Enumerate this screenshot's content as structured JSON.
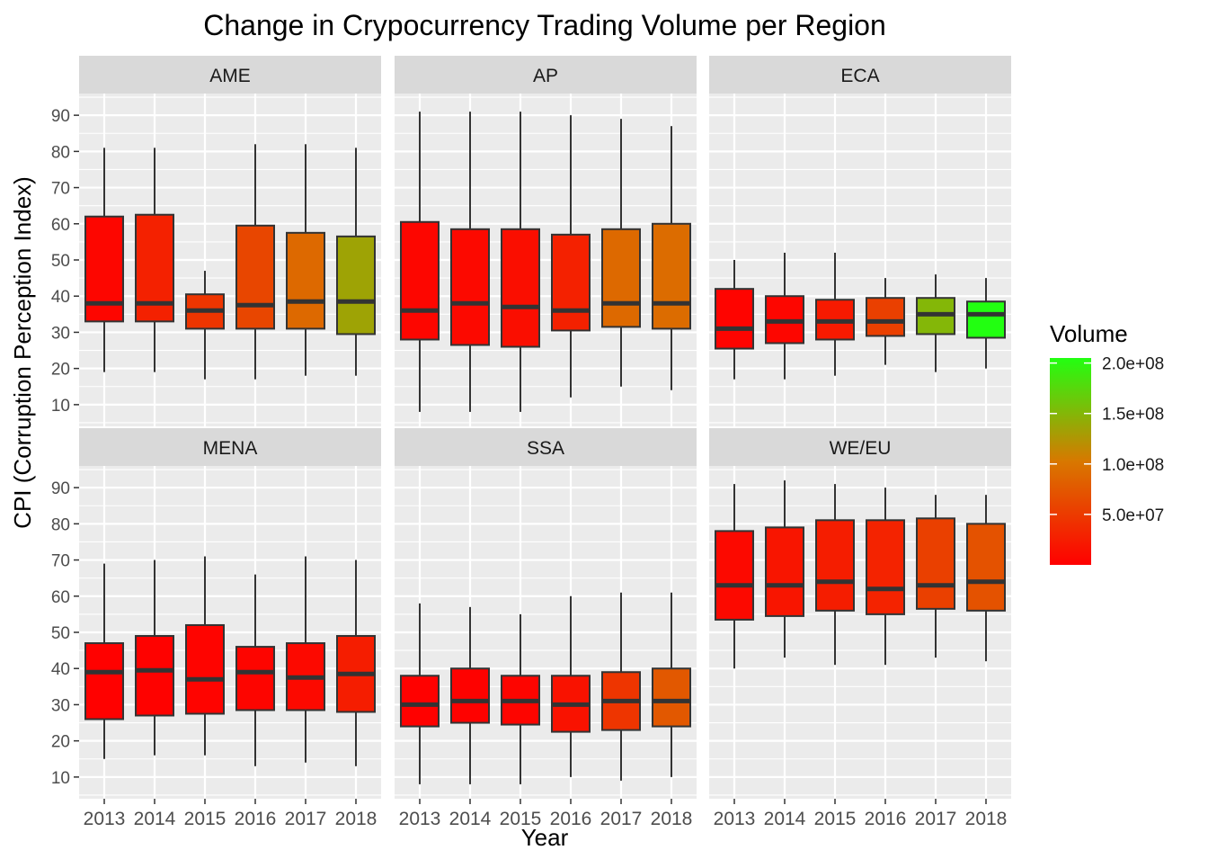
{
  "chart_data": {
    "type": "boxplot",
    "title": "Change in Crypocurrency Trading Volume per Region",
    "xlabel": "Year",
    "ylabel": "CPI (Corruption Perception Index)",
    "ylim": [
      4,
      96
    ],
    "yticks": [
      10,
      20,
      30,
      40,
      50,
      60,
      70,
      80,
      90
    ],
    "categories": [
      "2013",
      "2014",
      "2015",
      "2016",
      "2017",
      "2018"
    ],
    "legend": {
      "title": "Volume",
      "position": "right",
      "labels": [
        "2.0e+08",
        "1.5e+08",
        "1.0e+08",
        "5.0e+07"
      ],
      "values": [
        200000000,
        150000000,
        100000000,
        50000000
      ],
      "min": 0,
      "max": 205000000,
      "low_color": "#ff0000",
      "high_color": "#22ff11"
    },
    "panels": [
      {
        "name": "AME",
        "boxes": [
          {
            "year": "2013",
            "min": 19,
            "q1": 33,
            "median": 38,
            "q3": 62,
            "max": 81,
            "volume": 5000000
          },
          {
            "year": "2014",
            "min": 19,
            "q1": 33,
            "median": 38,
            "q3": 62.5,
            "max": 81,
            "volume": 28000000
          },
          {
            "year": "2015",
            "min": 17,
            "q1": 31,
            "median": 36,
            "q3": 40.5,
            "max": 47,
            "volume": 45000000
          },
          {
            "year": "2016",
            "min": 17,
            "q1": 31,
            "median": 37.5,
            "q3": 59.5,
            "max": 82,
            "volume": 60000000
          },
          {
            "year": "2017",
            "min": 18,
            "q1": 31,
            "median": 38.5,
            "q3": 57.5,
            "max": 82,
            "volume": 90000000
          },
          {
            "year": "2018",
            "min": 18,
            "q1": 29.5,
            "median": 38.5,
            "q3": 56.5,
            "max": 81,
            "volume": 135000000
          }
        ]
      },
      {
        "name": "AP",
        "boxes": [
          {
            "year": "2013",
            "min": 8,
            "q1": 28,
            "median": 36,
            "q3": 60.5,
            "max": 91,
            "volume": 5000000
          },
          {
            "year": "2014",
            "min": 8,
            "q1": 26.5,
            "median": 38,
            "q3": 58.5,
            "max": 91,
            "volume": 8000000
          },
          {
            "year": "2015",
            "min": 8,
            "q1": 26,
            "median": 37,
            "q3": 58.5,
            "max": 91,
            "volume": 12000000
          },
          {
            "year": "2016",
            "min": 12,
            "q1": 30.5,
            "median": 36,
            "q3": 57,
            "max": 90,
            "volume": 28000000
          },
          {
            "year": "2017",
            "min": 15,
            "q1": 31.5,
            "median": 38,
            "q3": 58.5,
            "max": 89,
            "volume": 90000000
          },
          {
            "year": "2018",
            "min": 14,
            "q1": 31,
            "median": 38,
            "q3": 60,
            "max": 87,
            "volume": 92000000
          }
        ]
      },
      {
        "name": "ECA",
        "boxes": [
          {
            "year": "2013",
            "min": 17,
            "q1": 25.5,
            "median": 31,
            "q3": 42,
            "max": 50,
            "volume": 3000000
          },
          {
            "year": "2014",
            "min": 17,
            "q1": 27,
            "median": 33,
            "q3": 40,
            "max": 52,
            "volume": 5000000
          },
          {
            "year": "2015",
            "min": 18,
            "q1": 28,
            "median": 33,
            "q3": 39,
            "max": 52,
            "volume": 22000000
          },
          {
            "year": "2016",
            "min": 21,
            "q1": 29,
            "median": 33,
            "q3": 39.5,
            "max": 45,
            "volume": 55000000
          },
          {
            "year": "2017",
            "min": 19,
            "q1": 29.5,
            "median": 35,
            "q3": 39.5,
            "max": 46,
            "volume": 150000000
          },
          {
            "year": "2018",
            "min": 20,
            "q1": 28.5,
            "median": 35,
            "q3": 38.5,
            "max": 45,
            "volume": 205000000
          }
        ]
      },
      {
        "name": "MENA",
        "boxes": [
          {
            "year": "2013",
            "min": 15,
            "q1": 26,
            "median": 39,
            "q3": 47,
            "max": 69,
            "volume": 1000000
          },
          {
            "year": "2014",
            "min": 16,
            "q1": 27,
            "median": 39.5,
            "q3": 49,
            "max": 70,
            "volume": 2000000
          },
          {
            "year": "2015",
            "min": 16,
            "q1": 27.5,
            "median": 37,
            "q3": 52,
            "max": 71,
            "volume": 3000000
          },
          {
            "year": "2016",
            "min": 13,
            "q1": 28.5,
            "median": 39,
            "q3": 46,
            "max": 66,
            "volume": 4000000
          },
          {
            "year": "2017",
            "min": 14,
            "q1": 28.5,
            "median": 37.5,
            "q3": 47,
            "max": 71,
            "volume": 8000000
          },
          {
            "year": "2018",
            "min": 13,
            "q1": 28,
            "median": 38.5,
            "q3": 49,
            "max": 70,
            "volume": 25000000
          }
        ]
      },
      {
        "name": "SSA",
        "boxes": [
          {
            "year": "2013",
            "min": 8,
            "q1": 24,
            "median": 30,
            "q3": 38,
            "max": 58,
            "volume": 1000000
          },
          {
            "year": "2014",
            "min": 8,
            "q1": 25,
            "median": 31,
            "q3": 40,
            "max": 57,
            "volume": 2000000
          },
          {
            "year": "2015",
            "min": 8,
            "q1": 24.5,
            "median": 31,
            "q3": 38,
            "max": 55,
            "volume": 4000000
          },
          {
            "year": "2016",
            "min": 10,
            "q1": 22.5,
            "median": 30,
            "q3": 38,
            "max": 60,
            "volume": 15000000
          },
          {
            "year": "2017",
            "min": 9,
            "q1": 23,
            "median": 31,
            "q3": 39,
            "max": 61,
            "volume": 45000000
          },
          {
            "year": "2018",
            "min": 10,
            "q1": 24,
            "median": 31,
            "q3": 40,
            "max": 61,
            "volume": 75000000
          }
        ]
      },
      {
        "name": "WE/EU",
        "boxes": [
          {
            "year": "2013",
            "min": 40,
            "q1": 53.5,
            "median": 63,
            "q3": 78,
            "max": 91,
            "volume": 8000000
          },
          {
            "year": "2014",
            "min": 43,
            "q1": 54.5,
            "median": 63,
            "q3": 79,
            "max": 92,
            "volume": 18000000
          },
          {
            "year": "2015",
            "min": 41,
            "q1": 56,
            "median": 64,
            "q3": 81,
            "max": 91,
            "volume": 25000000
          },
          {
            "year": "2016",
            "min": 41,
            "q1": 55,
            "median": 62,
            "q3": 81,
            "max": 90,
            "volume": 30000000
          },
          {
            "year": "2017",
            "min": 43,
            "q1": 56.5,
            "median": 63,
            "q3": 81.5,
            "max": 88,
            "volume": 55000000
          },
          {
            "year": "2018",
            "min": 42,
            "q1": 56,
            "median": 64,
            "q3": 80,
            "max": 88,
            "volume": 70000000
          }
        ]
      }
    ]
  }
}
